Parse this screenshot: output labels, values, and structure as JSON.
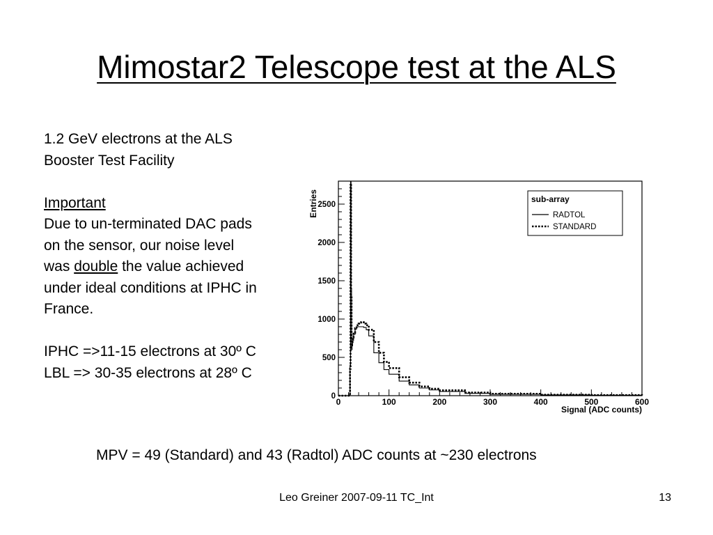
{
  "slide": {
    "title": "Mimostar2 Telescope test at the ALS",
    "body": {
      "line1": "1.2 GeV electrons at the ALS",
      "line2": "Booster Test Facility",
      "important_heading": "Important",
      "line3": "Due to un-terminated DAC pads",
      "line4": "on the sensor, our noise level",
      "line5_pre": "was ",
      "line5_emph": "double",
      "line5_post": " the value achieved",
      "line6": "under ideal conditions at IPHC in",
      "line7": "France.",
      "line8": "IPHC =>11-15 electrons at 30º C",
      "line9": "LBL => 30-35 electrons at 28º C"
    },
    "mpv": "MPV = 49 (Standard) and 43 (Radtol) ADC counts at ~230 electrons",
    "footer": {
      "center": "Leo Greiner 2007-09-11 TC_Int",
      "page": "13"
    }
  },
  "chart_data": {
    "type": "line",
    "xlabel": "Signal (ADC counts)",
    "ylabel": "Entries",
    "xlim": [
      0,
      600
    ],
    "ylim": [
      0,
      2800
    ],
    "xticks": [
      0,
      100,
      200,
      300,
      400,
      500,
      600
    ],
    "yticks": [
      500,
      1000,
      1500,
      2000,
      2500
    ],
    "ytick_labels_shown": [
      "0",
      "500",
      "1000",
      "1500",
      "2000",
      "2500"
    ],
    "legend": {
      "title": "sub-array",
      "placement": "top-right"
    },
    "series": [
      {
        "name": "RADTOL",
        "style": "solid",
        "x": [
          0,
          10,
          20,
          23,
          24,
          25,
          26,
          27,
          28,
          30,
          33,
          36,
          40,
          45,
          50,
          55,
          60,
          70,
          80,
          90,
          100,
          120,
          140,
          160,
          180,
          200,
          250,
          300,
          400,
          500,
          600
        ],
        "y": [
          0,
          0,
          0,
          400,
          2800,
          1400,
          600,
          650,
          720,
          800,
          870,
          900,
          900,
          900,
          890,
          860,
          780,
          560,
          430,
          340,
          280,
          190,
          140,
          100,
          75,
          55,
          30,
          18,
          10,
          6,
          4
        ]
      },
      {
        "name": "STANDARD",
        "style": "dotted",
        "x": [
          0,
          10,
          20,
          23,
          24,
          25,
          26,
          27,
          28,
          30,
          33,
          36,
          40,
          45,
          50,
          55,
          60,
          70,
          80,
          90,
          100,
          120,
          140,
          160,
          180,
          200,
          250,
          300,
          400,
          500,
          600
        ],
        "y": [
          0,
          0,
          0,
          350,
          2750,
          1300,
          650,
          700,
          760,
          820,
          880,
          920,
          940,
          960,
          940,
          920,
          860,
          700,
          560,
          440,
          360,
          240,
          170,
          120,
          90,
          70,
          40,
          25,
          12,
          7,
          4
        ]
      }
    ]
  }
}
